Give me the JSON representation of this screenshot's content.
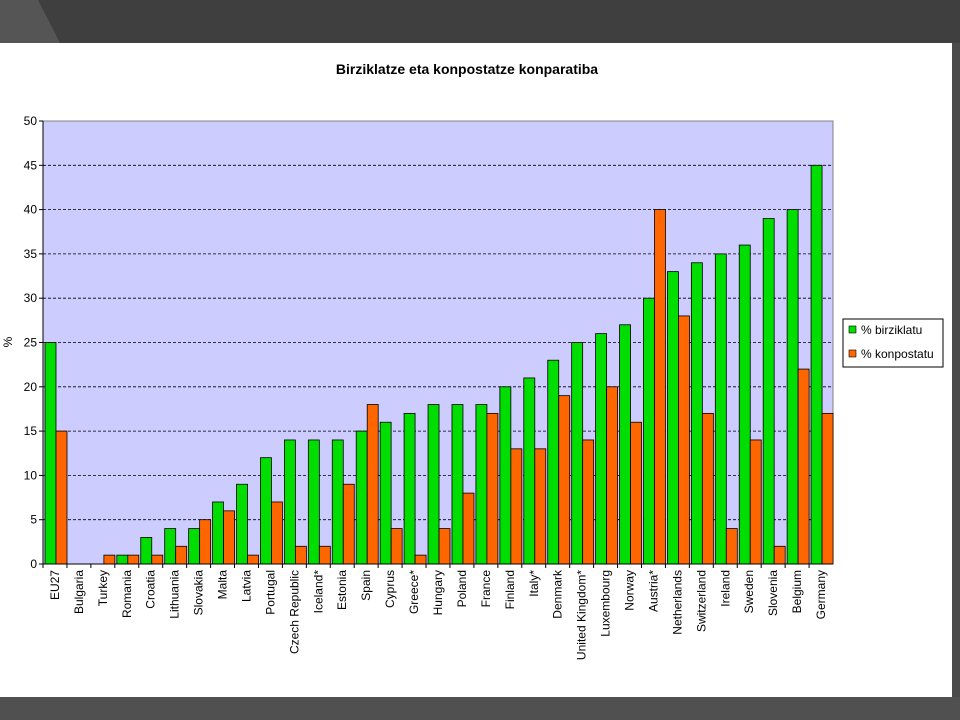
{
  "colors": {
    "background": "#3c3c3c",
    "plot_area": "#ccccff",
    "series_1": "#00dd00",
    "series_2": "#ff6600"
  },
  "chart_data": {
    "type": "bar",
    "title": "Birziklatze eta konpostatze konparatiba",
    "ylabel": "%",
    "xlabel": "",
    "ylim": [
      0,
      50
    ],
    "yticks": [
      0,
      5,
      10,
      15,
      20,
      25,
      30,
      35,
      40,
      45,
      50
    ],
    "grid": "horizontal-dashed",
    "legend_position": "right",
    "categories": [
      "EU27",
      "Bulgaria",
      "Turkey",
      "Romania",
      "Croatia",
      "Lithuania",
      "Slovakia",
      "Malta",
      "Latvia",
      "Portugal",
      "Czech Republic",
      "Iceland*",
      "Estonia",
      "Spain",
      "Cyprus",
      "Greece*",
      "Hungary",
      "Poland",
      "France",
      "Finland",
      "Italy*",
      "Denmark",
      "United Kingdom*",
      "Luxembourg",
      "Norway",
      "Austria*",
      "Netherlands",
      "Switzerland",
      "Ireland",
      "Sweden",
      "Slovenia",
      "Belgium",
      "Germany"
    ],
    "series": [
      {
        "name": "% birziklatu",
        "values": [
          25,
          0,
          0,
          1,
          3,
          4,
          4,
          7,
          9,
          12,
          14,
          14,
          14,
          15,
          16,
          17,
          18,
          18,
          18,
          20,
          21,
          23,
          25,
          26,
          27,
          30,
          33,
          34,
          35,
          36,
          39,
          40,
          45
        ]
      },
      {
        "name": "% konpostatu",
        "values": [
          15,
          0,
          1,
          1,
          1,
          2,
          5,
          6,
          1,
          7,
          2,
          2,
          9,
          18,
          4,
          1,
          4,
          8,
          17,
          13,
          13,
          19,
          14,
          20,
          16,
          40,
          28,
          17,
          4,
          14,
          2,
          22,
          17
        ]
      }
    ]
  }
}
